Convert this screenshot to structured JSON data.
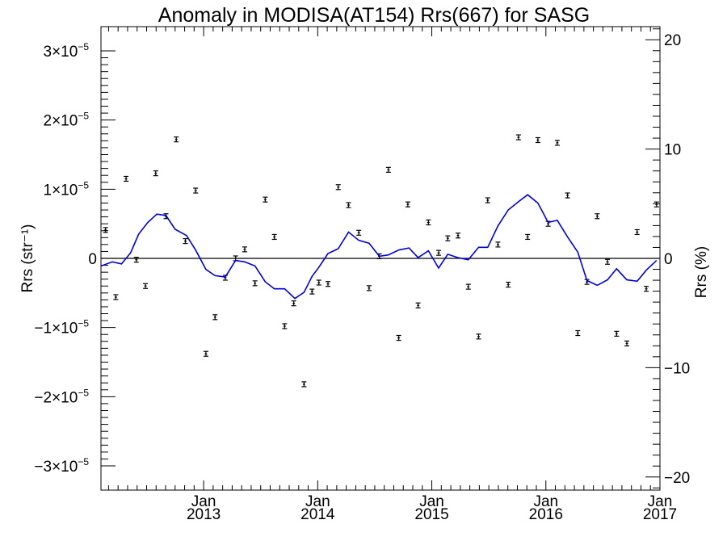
{
  "chart_data": {
    "type": "line",
    "title": "Anomaly in MODISA(AT154) Rrs(667) for SASG",
    "ylabel": "Rrs (str⁻¹)",
    "ylabel_right": "Rrs (%)",
    "xlabel": "",
    "xlim": [
      2012.1,
      2017.0
    ],
    "ylim": [
      -3.35e-05,
      3.35e-05
    ],
    "ylim_right": [
      -21.2,
      21.2
    ],
    "grid": false,
    "colors": {
      "line": "#0000dd",
      "points": "#000000",
      "zero": "#000000"
    },
    "x_ticks": [
      {
        "value": 2013,
        "month": "Jan",
        "year": "2013"
      },
      {
        "value": 2014,
        "month": "Jan",
        "year": "2014"
      },
      {
        "value": 2015,
        "month": "Jan",
        "year": "2015"
      },
      {
        "value": 2016,
        "month": "Jan",
        "year": "2016"
      },
      {
        "value": 2017,
        "month": "Jan",
        "year": "2017"
      }
    ],
    "y_ticks_left": [
      {
        "value": 3e-05,
        "mantissa": "3",
        "exp": "−5",
        "zero": false
      },
      {
        "value": 2e-05,
        "mantissa": "2",
        "exp": "−5",
        "zero": false
      },
      {
        "value": 1e-05,
        "mantissa": "1",
        "exp": "−5",
        "zero": false
      },
      {
        "value": 0,
        "mantissa": "0",
        "exp": "",
        "zero": true
      },
      {
        "value": -1e-05,
        "mantissa": "−1",
        "exp": "−5",
        "zero": false
      },
      {
        "value": -2e-05,
        "mantissa": "−2",
        "exp": "−5",
        "zero": false
      },
      {
        "value": -3e-05,
        "mantissa": "−3",
        "exp": "−5",
        "zero": false
      }
    ],
    "y_ticks_right": [
      {
        "value": 20,
        "label": "20"
      },
      {
        "value": 10,
        "label": "10"
      },
      {
        "value": 0,
        "label": "0"
      },
      {
        "value": -10,
        "label": "−10"
      },
      {
        "value": -20,
        "label": "−20"
      }
    ],
    "series": [
      {
        "kind": "points",
        "x": [
          2012.14,
          2012.23,
          2012.32,
          2012.41,
          2012.49,
          2012.58,
          2012.67,
          2012.76,
          2012.84,
          2012.93,
          2013.02,
          2013.1,
          2013.19,
          2013.28,
          2013.36,
          2013.45,
          2013.54,
          2013.62,
          2013.71,
          2013.79,
          2013.88,
          2013.95,
          2014.01,
          2014.09,
          2014.18,
          2014.27,
          2014.36,
          2014.45,
          2014.54,
          2014.62,
          2014.71,
          2014.79,
          2014.88,
          2014.97,
          2015.06,
          2015.14,
          2015.23,
          2015.32,
          2015.41,
          2015.49,
          2015.58,
          2015.67,
          2015.76,
          2015.84,
          2015.93,
          2016.02,
          2016.1,
          2016.19,
          2016.28,
          2016.36,
          2016.45,
          2016.54,
          2016.62,
          2016.71,
          2016.8,
          2016.88,
          2016.97
        ],
        "values": [
          4.1e-06,
          -5.6e-06,
          1.15e-05,
          -2e-07,
          -4e-06,
          1.23e-05,
          6.1e-06,
          1.72e-05,
          2.5e-06,
          9.8e-06,
          -1.38e-05,
          -8.5e-06,
          -2.8e-06,
          0,
          1.3e-06,
          -3.6e-06,
          8.5e-06,
          3.1e-06,
          -9.8e-06,
          -6.5e-06,
          -1.82e-05,
          -4.8e-06,
          -3.5e-06,
          -3.7e-06,
          1.03e-05,
          7.7e-06,
          3.7e-06,
          -4.3e-06,
          3e-07,
          1.28e-05,
          -1.15e-05,
          7.8e-06,
          -6.8e-06,
          5.2e-06,
          8e-07,
          2.9e-06,
          3.3e-06,
          -4.1e-06,
          -1.13e-05,
          8.4e-06,
          2e-06,
          -3.8e-06,
          1.75e-05,
          3.1e-06,
          1.71e-05,
          5e-06,
          1.67e-05,
          9.1e-06,
          -1.08e-05,
          -3.4e-06,
          6.1e-06,
          -5e-07,
          -1.09e-05,
          -1.23e-05,
          3.8e-06,
          -4.4e-06,
          7.8e-06
        ]
      },
      {
        "kind": "line",
        "x": [
          2012.1,
          2012.2,
          2012.28,
          2012.36,
          2012.43,
          2012.51,
          2012.59,
          2012.67,
          2012.75,
          2012.85,
          2012.93,
          2013.02,
          2013.1,
          2013.19,
          2013.28,
          2013.36,
          2013.45,
          2013.54,
          2013.62,
          2013.71,
          2013.8,
          2013.88,
          2013.95,
          2014.01,
          2014.09,
          2014.18,
          2014.27,
          2014.36,
          2014.45,
          2014.54,
          2014.62,
          2014.71,
          2014.8,
          2014.88,
          2014.97,
          2015.06,
          2015.14,
          2015.23,
          2015.32,
          2015.41,
          2015.49,
          2015.58,
          2015.67,
          2015.76,
          2015.84,
          2015.93,
          2016.02,
          2016.1,
          2016.19,
          2016.28,
          2016.36,
          2016.45,
          2016.54,
          2016.62,
          2016.71,
          2016.8,
          2016.88,
          2016.97
        ],
        "values": [
          -1.1e-06,
          -5e-07,
          -8e-07,
          8e-07,
          3.5e-06,
          5.2e-06,
          6.4e-06,
          6.2e-06,
          4.2e-06,
          3.3e-06,
          1.2e-06,
          -1.6e-06,
          -2.5e-06,
          -2.7e-06,
          -3e-07,
          -5e-07,
          -1.1e-06,
          -3.4e-06,
          -4.4e-06,
          -4.4e-06,
          -5.8e-06,
          -4.9e-06,
          -2.6e-06,
          -1.3e-06,
          7e-07,
          1.4e-06,
          3.8e-06,
          2.6e-06,
          2.2e-06,
          3e-07,
          5e-07,
          1.2e-06,
          1.5e-06,
          1e-07,
          1.1e-06,
          -1.4e-06,
          6e-07,
          1e-07,
          -2e-07,
          1.6e-06,
          1.6e-06,
          4.7e-06,
          7e-06,
          8.2e-06,
          9.2e-06,
          8e-06,
          5.2e-06,
          5.5e-06,
          3.1e-06,
          9e-07,
          -3.2e-06,
          -3.9e-06,
          -3.1e-06,
          -1.5e-06,
          -3.1e-06,
          -3.3e-06,
          -1.7e-06,
          -3e-07
        ]
      }
    ]
  }
}
